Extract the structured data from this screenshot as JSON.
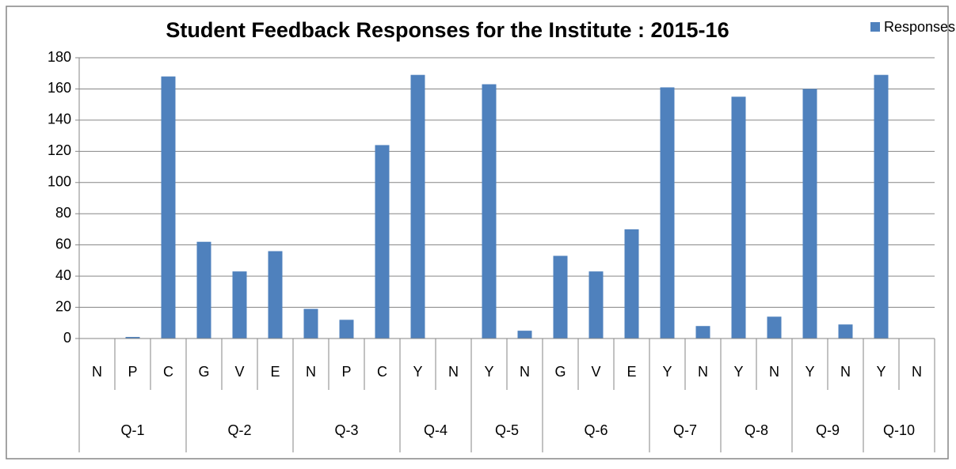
{
  "chart_data": {
    "type": "bar",
    "title": "Student Feedback Responses  for the Institute : 2015-16",
    "groups": [
      {
        "label": "Q-1",
        "categories": [
          "N",
          "P",
          "C"
        ]
      },
      {
        "label": "Q-2",
        "categories": [
          "G",
          "V",
          "E"
        ]
      },
      {
        "label": "Q-3",
        "categories": [
          "N",
          "P",
          "C"
        ]
      },
      {
        "label": "Q-4",
        "categories": [
          "Y",
          "N"
        ]
      },
      {
        "label": "Q-5",
        "categories": [
          "Y",
          "N"
        ]
      },
      {
        "label": "Q-6",
        "categories": [
          "G",
          "V",
          "E"
        ]
      },
      {
        "label": "Q-7",
        "categories": [
          "Y",
          "N"
        ]
      },
      {
        "label": "Q-8",
        "categories": [
          "Y",
          "N"
        ]
      },
      {
        "label": "Q-9",
        "categories": [
          "Y",
          "N"
        ]
      },
      {
        "label": "Q-10",
        "categories": [
          "Y",
          "N"
        ]
      }
    ],
    "series": [
      {
        "name": "Responses",
        "color": "#4f81bd",
        "values": [
          0,
          1,
          168,
          62,
          43,
          56,
          19,
          12,
          124,
          169,
          0,
          163,
          5,
          53,
          43,
          70,
          161,
          8,
          155,
          14,
          160,
          9,
          169,
          0
        ]
      }
    ],
    "ylim": [
      0,
      180
    ],
    "yticks": [
      0,
      20,
      40,
      60,
      80,
      100,
      120,
      140,
      160,
      180
    ],
    "grid": true,
    "legend": "top-right"
  }
}
